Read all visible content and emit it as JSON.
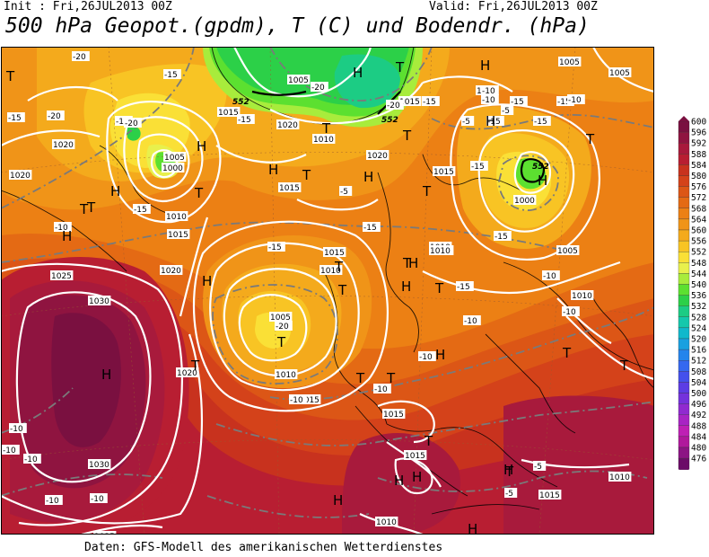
{
  "header": {
    "init": "Init : Fri,26JUL2013 00Z",
    "valid": "Valid: Fri,26JUL2013 00Z",
    "title": "500 hPa Geopot.(gpdm), T (C) und Bodendr. (hPa)"
  },
  "footer": {
    "source": "Daten: GFS-Modell des amerikanischen Wetterdienstes"
  },
  "legend": {
    "values": [
      "600",
      "596",
      "592",
      "588",
      "584",
      "580",
      "576",
      "572",
      "568",
      "564",
      "560",
      "556",
      "552",
      "548",
      "544",
      "540",
      "536",
      "532",
      "528",
      "524",
      "520",
      "516",
      "512",
      "508",
      "504",
      "500",
      "496",
      "492",
      "488",
      "484",
      "480",
      "476"
    ],
    "colors": [
      "#7a1040",
      "#8f1440",
      "#a81a3c",
      "#b81e32",
      "#c8321e",
      "#d4421a",
      "#dc5616",
      "#e46a14",
      "#ec8014",
      "#f09418",
      "#f4aa1c",
      "#f8c424",
      "#fae036",
      "#e8f04c",
      "#a8ec3c",
      "#5ce030",
      "#2cd048",
      "#1ccc84",
      "#14c8ac",
      "#10b8cc",
      "#18a0e0",
      "#2484ec",
      "#3468f0",
      "#4450ec",
      "#5c3ce4",
      "#7432dc",
      "#902ad0",
      "#a824c4",
      "#be20b4",
      "#b0189c",
      "#8c1484",
      "#6c0c68"
    ]
  },
  "map": {
    "pressure_labels": [
      {
        "id": "p1005-top",
        "text": "1005"
      },
      {
        "id": "p1005-ne",
        "text": "1005"
      },
      {
        "id": "p1005-ne2",
        "text": "1005"
      },
      {
        "id": "p1010-ne",
        "text": "1010"
      },
      {
        "id": "p1015-n",
        "text": "1015"
      },
      {
        "id": "p1015-n2",
        "text": "1015"
      },
      {
        "id": "p1020-n",
        "text": "1020"
      },
      {
        "id": "p1010-n",
        "text": "1010"
      },
      {
        "id": "p1020-n2",
        "text": "1020"
      },
      {
        "id": "p1015-c",
        "text": "1015"
      },
      {
        "id": "p1020-w",
        "text": "1020"
      },
      {
        "id": "p1005-nw",
        "text": "1005"
      },
      {
        "id": "p1000-nw",
        "text": "1000"
      },
      {
        "id": "p1010-nw",
        "text": "1010"
      },
      {
        "id": "p1015-nw",
        "text": "1015"
      },
      {
        "id": "p1020-w2",
        "text": "1020"
      },
      {
        "id": "p1020-w3",
        "text": "1020"
      },
      {
        "id": "p1015-c2",
        "text": "1015"
      },
      {
        "id": "p1010-c",
        "text": "1010"
      },
      {
        "id": "p1005-c",
        "text": "1005"
      },
      {
        "id": "p1010-c2",
        "text": "1010"
      },
      {
        "id": "p1015-c3",
        "text": "1015"
      },
      {
        "id": "p1020-c",
        "text": "1020"
      },
      {
        "id": "p1025-w",
        "text": "1025"
      },
      {
        "id": "p1030-w",
        "text": "1030"
      },
      {
        "id": "p1030-sw",
        "text": "1030"
      },
      {
        "id": "p1025-s",
        "text": "1025"
      },
      {
        "id": "p1015-s",
        "text": "1015"
      },
      {
        "id": "p1015-s2",
        "text": "1015"
      },
      {
        "id": "p1010-s",
        "text": "1010"
      },
      {
        "id": "p1015-se",
        "text": "1015"
      },
      {
        "id": "p1010-se",
        "text": "1010"
      },
      {
        "id": "p1015-e",
        "text": "1015"
      },
      {
        "id": "p1010-e",
        "text": "1010"
      },
      {
        "id": "p1005-e",
        "text": "1005"
      },
      {
        "id": "p1000-e",
        "text": "1000"
      },
      {
        "id": "p1015-ee",
        "text": "1015"
      },
      {
        "id": "p1010-ee",
        "text": "1010"
      },
      {
        "id": "p1010-sw2",
        "text": "1010"
      }
    ],
    "temp_labels": [
      {
        "id": "t-20a",
        "text": "-20"
      },
      {
        "id": "t-15a",
        "text": "-15"
      },
      {
        "id": "t-20b",
        "text": "-20"
      },
      {
        "id": "t-15b",
        "text": "-15"
      },
      {
        "id": "t-20c",
        "text": "-20"
      },
      {
        "id": "t-15c",
        "text": "-15"
      },
      {
        "id": "t-20d",
        "text": "-20"
      },
      {
        "id": "t-20e",
        "text": "-20"
      },
      {
        "id": "t-15d",
        "text": "-15"
      },
      {
        "id": "t-10a",
        "text": "-10"
      },
      {
        "id": "t-15e",
        "text": "-15"
      },
      {
        "id": "t-10b",
        "text": "-10"
      },
      {
        "id": "t-5a",
        "text": "-5"
      },
      {
        "id": "t-15f",
        "text": "-15"
      },
      {
        "id": "t-5b",
        "text": "-5"
      },
      {
        "id": "t-15g",
        "text": "-15"
      },
      {
        "id": "t-15h",
        "text": "-15"
      },
      {
        "id": "t-10c",
        "text": "-10"
      },
      {
        "id": "t-15i",
        "text": "-15"
      },
      {
        "id": "t-5c",
        "text": "-5"
      },
      {
        "id": "t-15j",
        "text": "-15"
      },
      {
        "id": "t-15k",
        "text": "-15"
      },
      {
        "id": "t-15l",
        "text": "-15"
      },
      {
        "id": "t-15m",
        "text": "-15"
      },
      {
        "id": "t-10d",
        "text": "-10"
      },
      {
        "id": "t-15n",
        "text": "-15"
      },
      {
        "id": "t-10e",
        "text": "-10"
      },
      {
        "id": "t-20f",
        "text": "-20"
      },
      {
        "id": "t-10f",
        "text": "-10"
      },
      {
        "id": "t-10g",
        "text": "-10"
      },
      {
        "id": "t-10h",
        "text": "-10"
      },
      {
        "id": "t-10i",
        "text": "-10"
      },
      {
        "id": "t-10j",
        "text": "-10"
      },
      {
        "id": "t-10k",
        "text": "-10"
      },
      {
        "id": "t-5d",
        "text": "-5"
      },
      {
        "id": "t-5e",
        "text": "-5"
      },
      {
        "id": "t-10l",
        "text": "-10"
      },
      {
        "id": "t-10m",
        "text": "-10"
      },
      {
        "id": "t-10n",
        "text": "-10"
      },
      {
        "id": "t-15o",
        "text": "-15"
      },
      {
        "id": "t-10o",
        "text": "-10"
      }
    ],
    "height_labels": [
      {
        "id": "g552a",
        "text": "552"
      },
      {
        "id": "g552b",
        "text": "552"
      },
      {
        "id": "g552c",
        "text": "552"
      }
    ],
    "centers": [
      {
        "id": "c1",
        "text": "T"
      },
      {
        "id": "c2",
        "text": "H"
      },
      {
        "id": "c3",
        "text": "T"
      },
      {
        "id": "c4",
        "text": "H"
      },
      {
        "id": "c5",
        "text": "H"
      },
      {
        "id": "c6",
        "text": "T"
      },
      {
        "id": "c7",
        "text": "H"
      },
      {
        "id": "c8",
        "text": "T"
      },
      {
        "id": "c9",
        "text": "H"
      },
      {
        "id": "c10",
        "text": "T"
      },
      {
        "id": "c11",
        "text": "T"
      },
      {
        "id": "c12",
        "text": "H"
      },
      {
        "id": "c13",
        "text": "T"
      },
      {
        "id": "c14",
        "text": "H"
      },
      {
        "id": "c15",
        "text": "H"
      },
      {
        "id": "c16",
        "text": "H"
      },
      {
        "id": "c17",
        "text": "T"
      },
      {
        "id": "c18",
        "text": "T"
      },
      {
        "id": "c19",
        "text": "H"
      },
      {
        "id": "c20",
        "text": "T"
      },
      {
        "id": "c21",
        "text": "T"
      },
      {
        "id": "c22",
        "text": "H"
      },
      {
        "id": "c23",
        "text": "T"
      },
      {
        "id": "c24",
        "text": "T"
      },
      {
        "id": "c25",
        "text": "H"
      },
      {
        "id": "c26",
        "text": "T"
      },
      {
        "id": "c27",
        "text": "H"
      },
      {
        "id": "c28",
        "text": "T"
      },
      {
        "id": "c29",
        "text": "H"
      },
      {
        "id": "c30",
        "text": "H"
      },
      {
        "id": "c31",
        "text": "T"
      },
      {
        "id": "c32",
        "text": "H"
      },
      {
        "id": "c33",
        "text": "T"
      },
      {
        "id": "c34",
        "text": "H"
      },
      {
        "id": "c35",
        "text": "T"
      },
      {
        "id": "c36",
        "text": "T"
      },
      {
        "id": "c37",
        "text": "H"
      },
      {
        "id": "c38",
        "text": "H"
      },
      {
        "id": "c39",
        "text": "T"
      },
      {
        "id": "c40",
        "text": "T"
      },
      {
        "id": "c41",
        "text": "T"
      }
    ]
  }
}
